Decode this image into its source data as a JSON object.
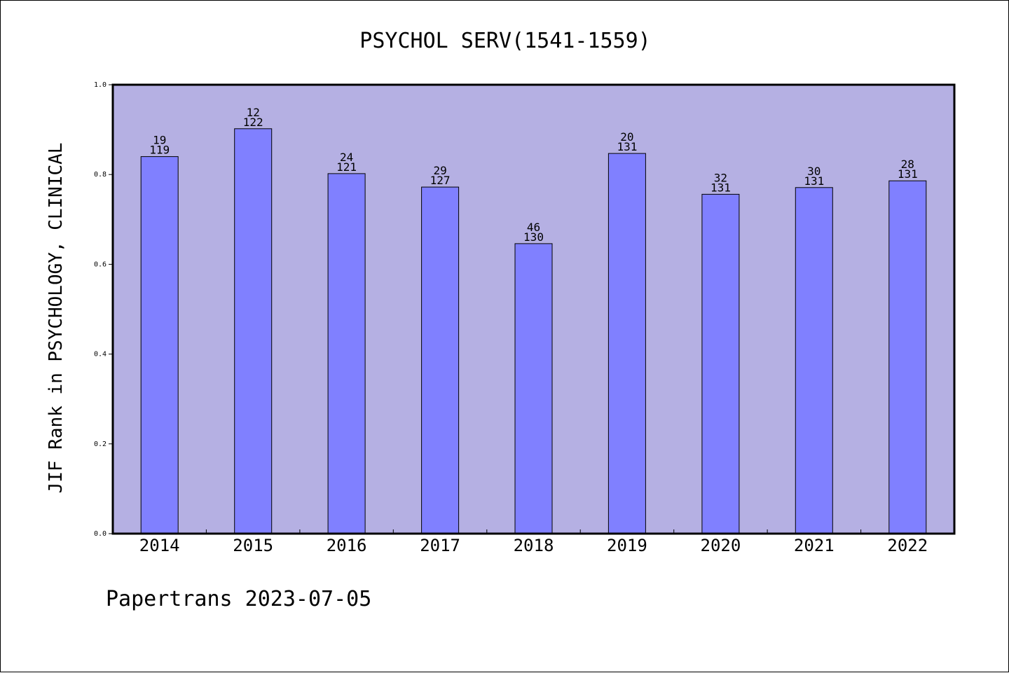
{
  "chart_data": {
    "type": "bar",
    "title": "PSYCHOL SERV(1541-1559)",
    "xlabel": "",
    "ylabel": "JIF Rank in PSYCHOLOGY, CLINICAL",
    "categories": [
      "2014",
      "2015",
      "2016",
      "2017",
      "2018",
      "2019",
      "2020",
      "2021",
      "2022"
    ],
    "values": [
      0.84,
      0.902,
      0.802,
      0.772,
      0.646,
      0.847,
      0.756,
      0.771,
      0.786
    ],
    "bar_labels": [
      [
        "19",
        "119"
      ],
      [
        "12",
        "122"
      ],
      [
        "24",
        "121"
      ],
      [
        "29",
        "127"
      ],
      [
        "46",
        "130"
      ],
      [
        "20",
        "131"
      ],
      [
        "32",
        "131"
      ],
      [
        "30",
        "131"
      ],
      [
        "28",
        "131"
      ]
    ],
    "ylim": [
      0.0,
      1.0
    ],
    "yticks": [
      "0.0",
      "0.2",
      "0.4",
      "0.6",
      "0.8",
      "1.0"
    ],
    "grid": false,
    "legend": "none",
    "colors": {
      "bar": "#8080ff",
      "plot_background": "#b5b0e3"
    }
  },
  "footer": {
    "text": "Papertrans 2023-07-05"
  }
}
